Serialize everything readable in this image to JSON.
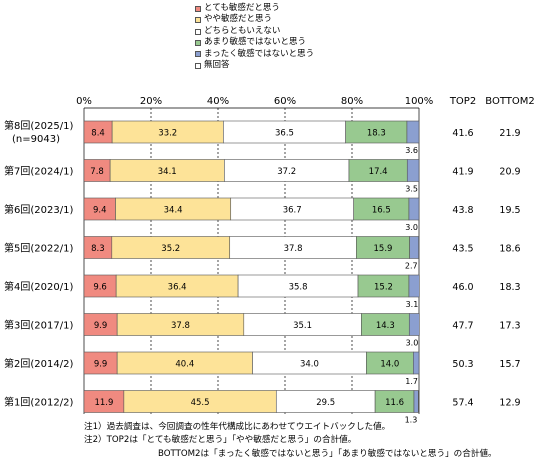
{
  "legend": {
    "items": [
      {
        "label": "とても敏感だと思う",
        "color": "#f08a80"
      },
      {
        "label": "やや敏感だと思う",
        "color": "#fde398"
      },
      {
        "label": "どちらともいえない",
        "color": "#ffffff"
      },
      {
        "label": "あまり敏感ではないと思う",
        "color": "#98c990"
      },
      {
        "label": "まったく敏感ではないと思う",
        "color": "#8b9fd0"
      },
      {
        "label": "無回答",
        "color": "#ffffff"
      }
    ]
  },
  "chart_data": {
    "type": "bar",
    "orientation": "horizontal",
    "stacked": true,
    "x_ticks": [
      "0%",
      "20%",
      "40%",
      "60%",
      "80%",
      "100%"
    ],
    "xlim": [
      0,
      100
    ],
    "categories": [
      {
        "label": "第8回(2025/1)",
        "sublabel": "(n=9043)"
      },
      {
        "label": "第7回(2024/1)",
        "sublabel": ""
      },
      {
        "label": "第6回(2023/1)",
        "sublabel": ""
      },
      {
        "label": "第5回(2022/1)",
        "sublabel": ""
      },
      {
        "label": "第4回(2020/1)",
        "sublabel": ""
      },
      {
        "label": "第3回(2017/1)",
        "sublabel": ""
      },
      {
        "label": "第2回(2014/2)",
        "sublabel": ""
      },
      {
        "label": "第1回(2012/2)",
        "sublabel": ""
      }
    ],
    "series": [
      {
        "name": "とても敏感だと思う",
        "color": "#f08a80",
        "values": [
          8.4,
          7.8,
          9.4,
          8.3,
          9.6,
          9.9,
          9.9,
          11.9
        ],
        "labels": [
          "8.4",
          "7.8",
          "9.4",
          "8.3",
          "9.6",
          "9.9",
          "9.9",
          "11.9"
        ]
      },
      {
        "name": "やや敏感だと思う",
        "color": "#fde398",
        "values": [
          33.2,
          34.1,
          34.4,
          35.2,
          36.4,
          37.8,
          40.4,
          45.5
        ],
        "labels": [
          "33.2",
          "34.1",
          "34.4",
          "35.2",
          "36.4",
          "37.8",
          "40.4",
          "45.5"
        ]
      },
      {
        "name": "どちらともいえない",
        "color": "#ffffff",
        "values": [
          36.5,
          37.2,
          36.7,
          37.8,
          35.8,
          35.1,
          34.0,
          29.5
        ],
        "labels": [
          "36.5",
          "37.2",
          "36.7",
          "37.8",
          "35.8",
          "35.1",
          "34.0",
          "29.5"
        ]
      },
      {
        "name": "あまり敏感ではないと思う",
        "color": "#98c990",
        "values": [
          18.3,
          17.4,
          16.5,
          15.9,
          15.2,
          14.3,
          14.0,
          11.6
        ],
        "labels": [
          "18.3",
          "17.4",
          "16.5",
          "15.9",
          "15.2",
          "14.3",
          "14.0",
          "11.6"
        ]
      },
      {
        "name": "まったく敏感ではないと思う",
        "color": "#8b9fd0",
        "values": [
          3.6,
          3.5,
          3.0,
          2.7,
          3.1,
          3.0,
          1.7,
          1.3
        ],
        "labels": [
          "3.6",
          "3.5",
          "3.0",
          "2.7",
          "3.1",
          "3.0",
          "1.7",
          "1.3"
        ]
      }
    ],
    "side_columns": [
      {
        "header": "TOP2",
        "values": [
          "41.6",
          "41.9",
          "43.8",
          "43.5",
          "46.0",
          "47.7",
          "50.3",
          "57.4"
        ]
      },
      {
        "header": "BOTTOM2",
        "values": [
          "21.9",
          "20.9",
          "19.5",
          "18.6",
          "18.3",
          "17.3",
          "15.7",
          "12.9"
        ]
      }
    ]
  },
  "notes": [
    "注1）過去調査は、今回調査の性年代構成比にあわせてウエイトバックした値。",
    "注2）TOP2は「とても敏感だと思う」「やや敏感だと思う」の合計値。",
    "BOTTOM2は「まったく敏感ではないと思う」「あまり敏感ではないと思う」の合計値。"
  ]
}
